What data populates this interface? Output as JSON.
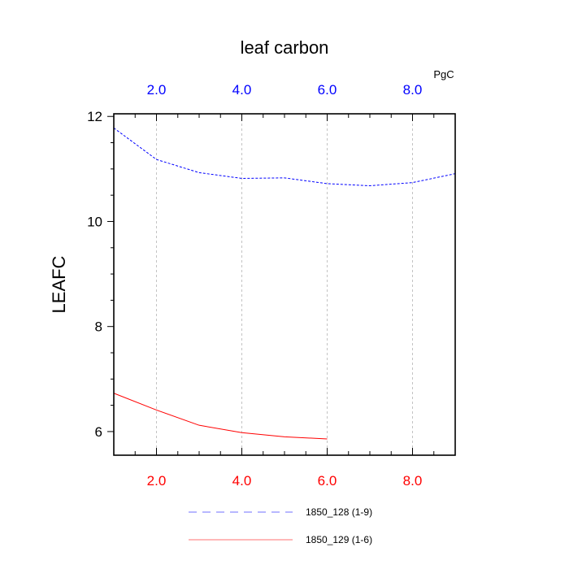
{
  "chart_data": {
    "type": "line",
    "title": "leaf carbon",
    "ylabel": "LEAFC",
    "units": "PgC",
    "xlim": [
      1,
      9
    ],
    "ylim": [
      5.55,
      12.05
    ],
    "yticks": [
      6,
      8,
      10,
      12
    ],
    "ytick_labels": [
      "6",
      "8",
      "10",
      "12"
    ],
    "xticks": [
      2,
      4,
      6,
      8
    ],
    "xtick_labels": [
      "2.0",
      "4.0",
      "6.0",
      "8.0"
    ],
    "grid": "vertical dashed",
    "series": [
      {
        "name": "1850_128 (1-9)",
        "axis": "top",
        "color": "#0000ff",
        "style": "dashed",
        "x": [
          1,
          2,
          3,
          4,
          5,
          6,
          7,
          8,
          9
        ],
        "values": [
          11.78,
          11.18,
          10.93,
          10.82,
          10.83,
          10.72,
          10.68,
          10.74,
          10.91
        ]
      },
      {
        "name": "1850_129 (1-6)",
        "axis": "bottom",
        "color": "#ff0000",
        "style": "solid",
        "x": [
          1,
          2,
          3,
          4,
          5,
          6
        ],
        "values": [
          6.73,
          6.41,
          6.12,
          5.98,
          5.9,
          5.86
        ]
      }
    ]
  }
}
